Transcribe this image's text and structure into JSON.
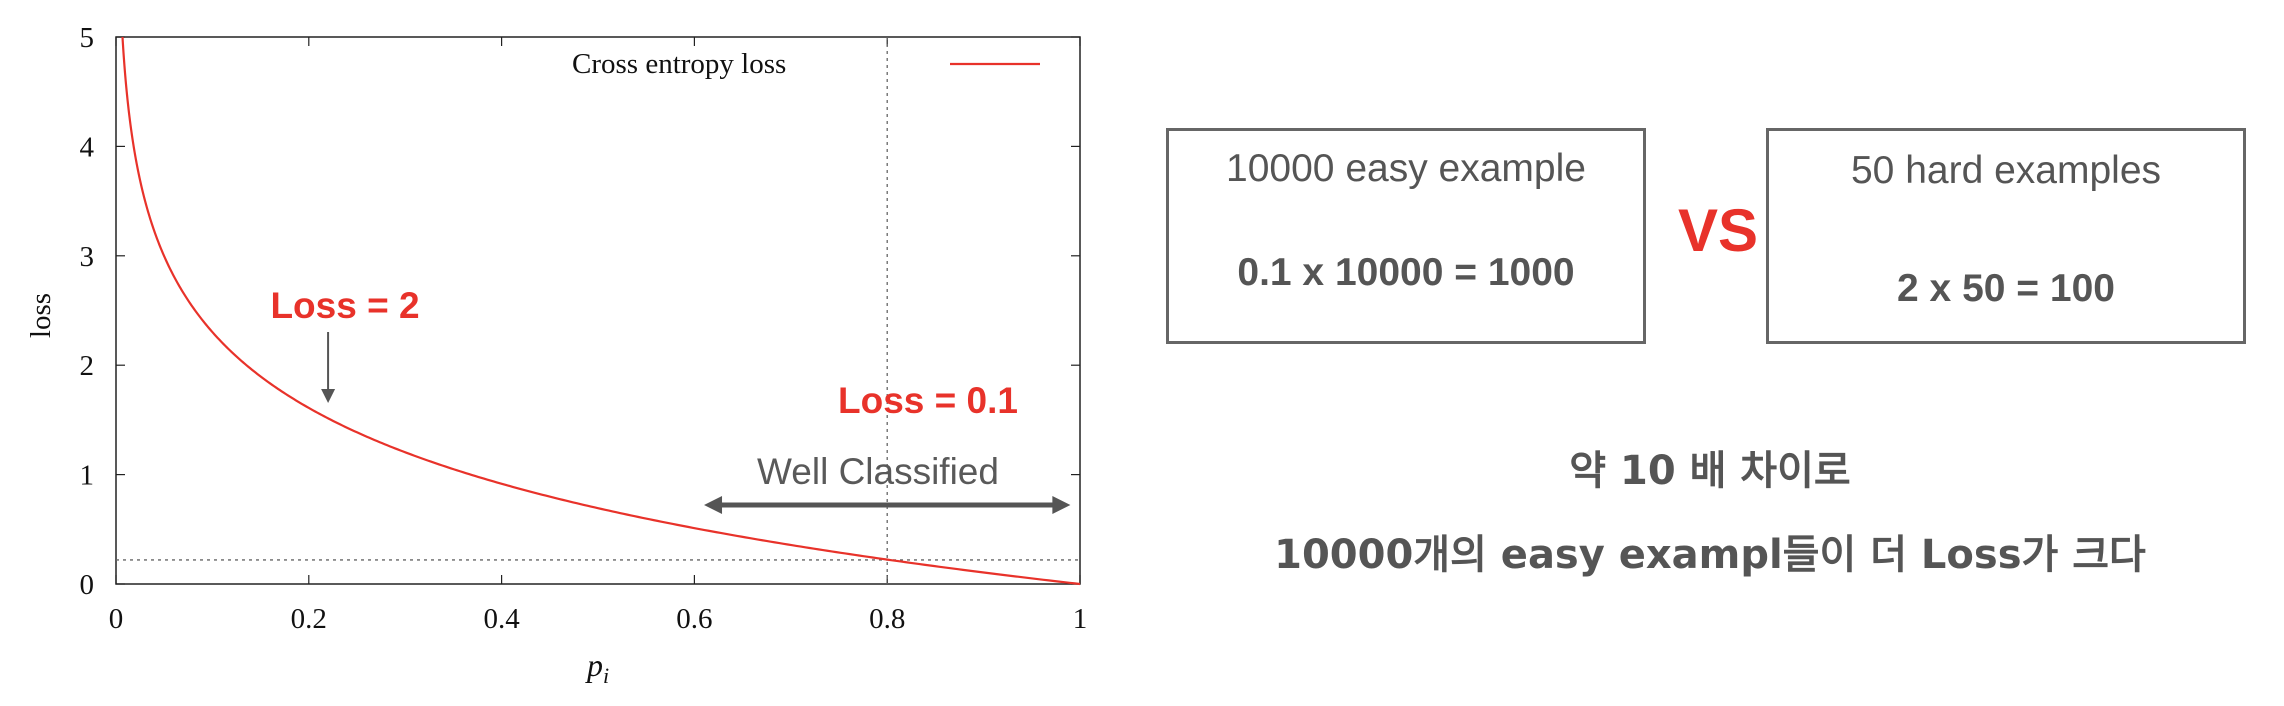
{
  "chart_data": {
    "type": "line",
    "xlabel": "p_i",
    "ylabel": "loss",
    "xlim": [
      0,
      1
    ],
    "ylim": [
      0,
      5
    ],
    "x_ticks": [
      "0",
      "0.2",
      "0.4",
      "0.6",
      "0.8",
      "1"
    ],
    "y_ticks": [
      "0",
      "1",
      "2",
      "3",
      "4",
      "5"
    ],
    "series": [
      {
        "name": "Cross entropy loss",
        "color": "#e8322a",
        "function": "-ln(p)",
        "x": [
          0.007,
          0.01,
          0.02,
          0.03,
          0.05,
          0.07,
          0.1,
          0.13,
          0.16,
          0.2,
          0.25,
          0.3,
          0.35,
          0.4,
          0.45,
          0.5,
          0.55,
          0.6,
          0.65,
          0.7,
          0.75,
          0.8,
          0.85,
          0.9,
          0.95,
          1.0
        ],
        "y": [
          4.96,
          4.61,
          3.91,
          3.51,
          3.0,
          2.66,
          2.3,
          2.04,
          1.83,
          1.61,
          1.39,
          1.2,
          1.05,
          0.92,
          0.8,
          0.69,
          0.6,
          0.51,
          0.43,
          0.36,
          0.29,
          0.22,
          0.16,
          0.11,
          0.05,
          0.0
        ]
      }
    ],
    "reference_lines": {
      "horizontal_y": 0.22,
      "vertical_x": 0.8
    },
    "legend_position": "top-right",
    "grid": false,
    "annotations": {
      "loss_high": {
        "text": "Loss = 2",
        "color": "#e8322a",
        "at_x": 0.22
      },
      "loss_low": {
        "text": "Loss = 0.1",
        "color": "#e8322a"
      },
      "well_classified": {
        "text": "Well Classified",
        "color": "#595959",
        "range": [
          0.61,
          0.99
        ]
      }
    }
  },
  "comparison": {
    "easy_box": {
      "title": "10000 easy example",
      "equation": "0.1 x 10000 = 1000"
    },
    "vs": "VS",
    "hard_box": {
      "title": "50 hard examples",
      "equation": "2 x 50 = 100"
    }
  },
  "summary": {
    "line1": "약 10 배 차이로",
    "line2": "10000개의 easy exampl들이 더 Loss가 크다"
  },
  "colors": {
    "accent": "#e8322a",
    "text_gray": "#555555",
    "border_gray": "#666666"
  }
}
